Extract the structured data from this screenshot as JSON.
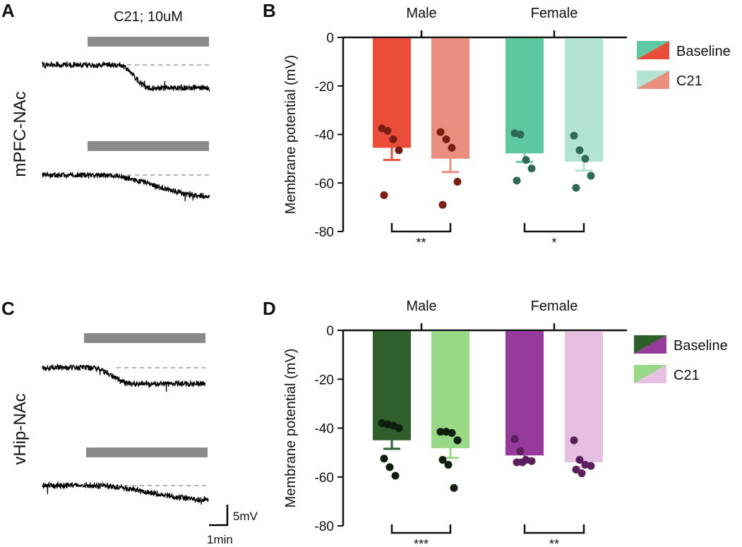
{
  "figure": {
    "drug_label": "C21; 10uM",
    "row_labels": [
      "mPFC-NAc",
      "vHip-NAc"
    ],
    "scale_bar": {
      "voltage": "5mV",
      "time": "1min"
    },
    "trace_color": "#000000",
    "drug_bar_color": "#8a8a8a",
    "baseline_line_color": "#9a9a9a"
  },
  "chart_data": [
    {
      "panel": "A",
      "type": "line",
      "description_free": true,
      "row_label": "mPFC-NAc",
      "drug_label": "C21; 10uM",
      "traces": [
        {
          "name": "trace-1",
          "start_mV": 0,
          "end_mV": -6.5,
          "transition_start_frac": 0.45,
          "transition_end_frac": 0.65
        },
        {
          "name": "trace-2",
          "start_mV": 0,
          "end_mV": -6.0,
          "transition_start_frac": 0.35,
          "transition_end_frac": 1.0
        }
      ]
    },
    {
      "panel": "B",
      "type": "bar",
      "ylabel": "Membrane potential (mV)",
      "ylim": [
        -80,
        0
      ],
      "yticks": [
        0,
        -20,
        -40,
        -60,
        -80
      ],
      "groups": [
        "Male",
        "Female"
      ],
      "legend": [
        "Baseline",
        "C21"
      ],
      "series": [
        {
          "name": "Male Baseline",
          "group": "Male",
          "condition": "Baseline",
          "value": -45.5,
          "sem": 5.0,
          "color": "#ea4e3a",
          "dot_color": "#7a1e14",
          "points": [
            -37.5,
            -38.5,
            -42.0,
            -46.5,
            -65.0
          ]
        },
        {
          "name": "Male C21",
          "group": "Male",
          "condition": "C21",
          "value": -50.0,
          "sem": 5.5,
          "color": "#ea8f80",
          "dot_color": "#7a1e14",
          "points": [
            -39.0,
            -42.0,
            -45.5,
            -59.5,
            -69.0
          ]
        },
        {
          "name": "Female Baseline",
          "group": "Female",
          "condition": "Baseline",
          "value": -47.8,
          "sem": 3.5,
          "color": "#5ec9a1",
          "dot_color": "#2f6a58",
          "points": [
            -39.5,
            -40.0,
            -50.5,
            -54.0,
            -59.0
          ]
        },
        {
          "name": "Female C21",
          "group": "Female",
          "condition": "C21",
          "value": -51.2,
          "sem": 3.7,
          "color": "#b3e3d3",
          "dot_color": "#2f6a58",
          "points": [
            -40.5,
            -46.5,
            -50.0,
            -57.0,
            -62.0
          ]
        }
      ],
      "significance": [
        {
          "group": "Male",
          "label": "**"
        },
        {
          "group": "Female",
          "label": "*"
        }
      ]
    },
    {
      "panel": "C",
      "type": "line",
      "row_label": "vHip-NAc",
      "traces": [
        {
          "name": "trace-1",
          "start_mV": 0,
          "end_mV": -4.5,
          "transition_start_frac": 0.3,
          "transition_end_frac": 0.55
        },
        {
          "name": "trace-2",
          "start_mV": 0,
          "end_mV": -4.0,
          "transition_start_frac": 0.3,
          "transition_end_frac": 1.0
        }
      ]
    },
    {
      "panel": "D",
      "type": "bar",
      "ylabel": "Membrane potential (mV)",
      "ylim": [
        -80,
        0
      ],
      "yticks": [
        0,
        -20,
        -40,
        -60,
        -80
      ],
      "groups": [
        "Male",
        "Female"
      ],
      "legend": [
        "Baseline",
        "C21"
      ],
      "series": [
        {
          "name": "Male Baseline",
          "group": "Male",
          "condition": "Baseline",
          "value": -45.0,
          "sem": 3.5,
          "color": "#2f5f2b",
          "dot_color": "#0f1f0e",
          "points": [
            -38.0,
            -38.5,
            -39.0,
            -40.0,
            -52.5,
            -56.0,
            -59.5
          ]
        },
        {
          "name": "Male C21",
          "group": "Male",
          "condition": "C21",
          "value": -48.2,
          "sem": 4.0,
          "color": "#98d986",
          "dot_color": "#0f1f0e",
          "points": [
            -41.5,
            -41.5,
            -42.0,
            -45.0,
            -53.0,
            -55.0,
            -64.5
          ]
        },
        {
          "name": "Female Baseline",
          "group": "Female",
          "condition": "Baseline",
          "value": -51.2,
          "sem": 1.8,
          "color": "#963b9b",
          "dot_color": "#5a1f5c",
          "points": [
            -44.5,
            -49.5,
            -53.0,
            -53.5,
            -54.0,
            -54.0
          ]
        },
        {
          "name": "Female C21",
          "group": "Female",
          "condition": "C21",
          "value": -54.0,
          "sem": 2.0,
          "color": "#e6bfe1",
          "dot_color": "#5a1f5c",
          "points": [
            -45.0,
            -53.0,
            -55.0,
            -55.5,
            -57.0,
            -58.5
          ]
        }
      ],
      "significance": [
        {
          "group": "Male",
          "label": "***"
        },
        {
          "group": "Female",
          "label": "**"
        }
      ]
    }
  ]
}
